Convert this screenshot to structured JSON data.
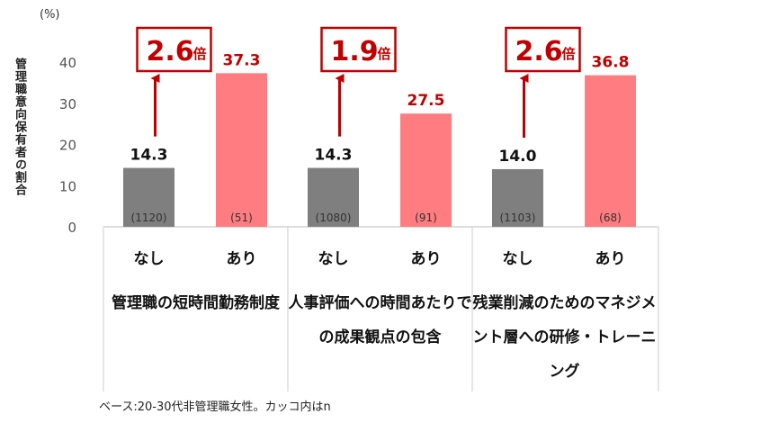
{
  "unit_label": "(%)",
  "ylabel": "管理職意向保有者の割合",
  "footnote": "ベース:20-30代非管理職女性。カッコ内はn",
  "colors": {
    "none": "#7f7f7f",
    "yes": "#ff7c80",
    "accent": "#c00000"
  },
  "chart_data": {
    "type": "bar",
    "ylim": [
      0,
      40
    ],
    "yticks": [
      0,
      10,
      20,
      30,
      40
    ],
    "groups": [
      {
        "title_lines": [
          "管理職の",
          "短時間勤務制度"
        ],
        "bars": [
          {
            "label": "なし",
            "value": 14.3,
            "value_label": "14.3",
            "n": "(1120)"
          },
          {
            "label": "あり",
            "value": 37.3,
            "value_label": "37.3",
            "n": "(51)"
          }
        ],
        "ratio": "2.6",
        "ratio_suffix": "倍"
      },
      {
        "title_lines": [
          "人事評価への",
          "時間あたりでの",
          "成果観点の包含"
        ],
        "bars": [
          {
            "label": "なし",
            "value": 14.3,
            "value_label": "14.3",
            "n": "(1080)"
          },
          {
            "label": "あり",
            "value": 27.5,
            "value_label": "27.5",
            "n": "(91)"
          }
        ],
        "ratio": "1.9",
        "ratio_suffix": "倍"
      },
      {
        "title_lines": [
          "残業削減のための",
          "マネジメント層への",
          "研修・トレーニング"
        ],
        "bars": [
          {
            "label": "なし",
            "value": 14.0,
            "value_label": "14.0",
            "n": "(1103)"
          },
          {
            "label": "あり",
            "value": 36.8,
            "value_label": "36.8",
            "n": "(68)"
          }
        ],
        "ratio": "2.6",
        "ratio_suffix": "倍"
      }
    ]
  }
}
